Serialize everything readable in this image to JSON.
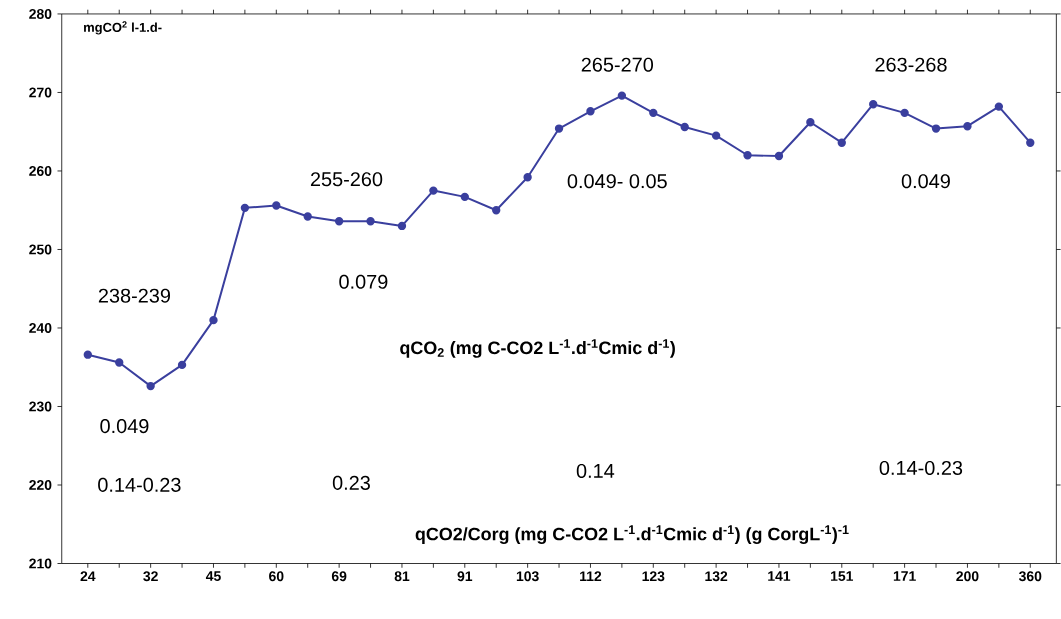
{
  "chart_data": {
    "type": "line",
    "ylabel": "mgCO$^{2}$ l-1.d-",
    "categories": [
      "24",
      null,
      "32",
      null,
      "45",
      null,
      "60",
      null,
      "69",
      null,
      "81",
      null,
      "91",
      null,
      "103",
      null,
      "112",
      null,
      "123",
      null,
      "132",
      null,
      "141",
      null,
      "151",
      null,
      "171",
      null,
      "200",
      null,
      "360"
    ],
    "series": [
      {
        "color": "#3a3f9e",
        "values": [
          236.6,
          235.6,
          232.6,
          235.3,
          241.0,
          255.3,
          255.6,
          254.2,
          253.6,
          253.6,
          253.0,
          257.5,
          256.7,
          255.0,
          259.2,
          265.4,
          267.6,
          269.6,
          267.4,
          265.6,
          264.5,
          262.0,
          261.9,
          266.2,
          263.6,
          268.5,
          267.4,
          265.4,
          265.7,
          268.2,
          263.6
        ]
      }
    ],
    "ylim": [
      210,
      280
    ],
    "yticks": [
      210,
      220,
      230,
      240,
      250,
      260,
      270,
      280
    ],
    "marker": "circle",
    "grid": false,
    "annotations": [
      "238-239",
      "255-260",
      "265-270",
      "263-268",
      "0.079",
      "0.049- 0.05",
      "0.049",
      "0.049",
      "qCO$_{2}$ (mg C-CO2 L$^{-1}$.d$^{-1}$Cmic  d$^{-1}$)",
      "0.14-0.23",
      "0.23",
      "0.14",
      "0.14-0.23",
      "qCO2/Corg  (mg C-CO2 L$^{-1}$.d$^{-1}$Cmic d$^{-1}$)  (g CorgL$^{-1}$)$^{-1}$"
    ]
  }
}
